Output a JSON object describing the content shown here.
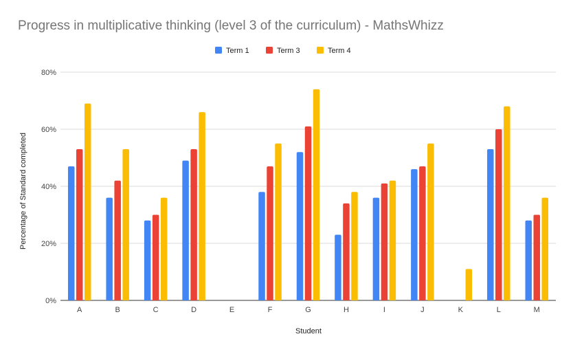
{
  "chart_data": {
    "type": "bar",
    "title": "Progress in multiplicative thinking (level 3 of the curriculum) - MathsWhizz",
    "xlabel": "Student",
    "ylabel": "Percentage of Standard completed",
    "categories": [
      "A",
      "B",
      "C",
      "D",
      "E",
      "F",
      "G",
      "H",
      "I",
      "J",
      "K",
      "L",
      "M"
    ],
    "series": [
      {
        "name": "Term 1",
        "color": "#4285f4",
        "values": [
          47,
          36,
          28,
          49,
          0,
          38,
          52,
          23,
          36,
          46,
          0,
          53,
          28
        ]
      },
      {
        "name": "Term 3",
        "color": "#ea4335",
        "values": [
          53,
          42,
          30,
          53,
          0,
          47,
          61,
          34,
          41,
          47,
          0,
          60,
          30
        ]
      },
      {
        "name": "Term 4",
        "color": "#fbbc04",
        "values": [
          69,
          53,
          36,
          66,
          0,
          55,
          74,
          38,
          42,
          55,
          11,
          68,
          36
        ]
      }
    ],
    "yticks": [
      "0%",
      "20%",
      "40%",
      "60%",
      "80%"
    ],
    "ylim": [
      0,
      80
    ],
    "grid": true,
    "legend_position": "top-center"
  }
}
